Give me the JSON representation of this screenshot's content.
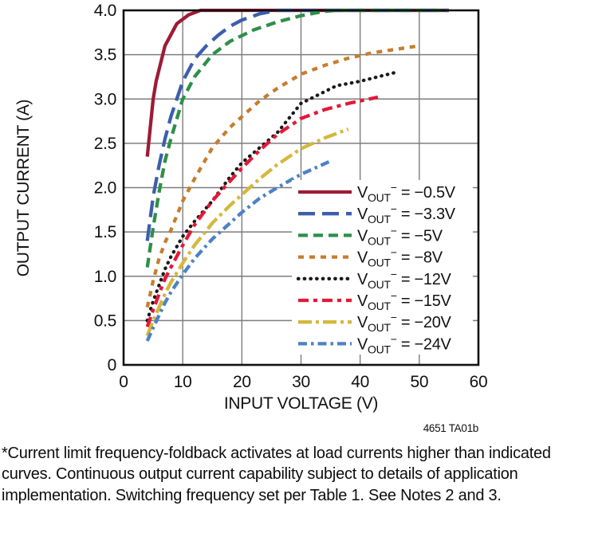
{
  "figure": {
    "code": "4651 TA01b",
    "note_lines": [
      "*Current limit frequency-foldback activates at load currents higher than indicated",
      "curves. Continuous output current capability subject to details of application",
      "implementation. Switching frequency set per Table 1. See Notes 2 and 3."
    ]
  },
  "chart_data": {
    "type": "line",
    "xlabel": "INPUT VOLTAGE (V)",
    "ylabel": "OUTPUT CURRENT (A)",
    "xlim": [
      0,
      60
    ],
    "ylim": [
      0,
      4
    ],
    "xticks": {
      "values": [
        0,
        10,
        20,
        30,
        40,
        50,
        60
      ],
      "labels": [
        "0",
        "10",
        "20",
        "30",
        "40",
        "50",
        "60"
      ]
    },
    "yticks": {
      "values": [
        0,
        0.5,
        1,
        1.5,
        2,
        2.5,
        3,
        3.5,
        4
      ],
      "labels": [
        "0",
        "0.5",
        "1.0",
        "1.5",
        "2.0",
        "2.5",
        "3.0",
        "3.5",
        "4.0"
      ]
    },
    "grid": true,
    "grid_color": "#7d7d7d",
    "frame_color": "#111111",
    "legend_position": "inside-right",
    "legend_template": {
      "var": "V",
      "sub": "OUT",
      "sup": "−",
      "eq": " = "
    },
    "series": [
      {
        "name": "VOUT⁻ = −0.5V",
        "value_label": "−0.5V",
        "color": "#9E1B35",
        "dash": [],
        "linecap": "butt",
        "points": [
          [
            4,
            2.35
          ],
          [
            5,
            3.0
          ],
          [
            5.5,
            3.2
          ],
          [
            7,
            3.6
          ],
          [
            9,
            3.85
          ],
          [
            11,
            3.95
          ],
          [
            13,
            4.0
          ],
          [
            55,
            4.0
          ]
        ]
      },
      {
        "name": "VOUT⁻ = −3.3V",
        "value_label": "−3.3V",
        "color": "#3D5EAB",
        "dash": [
          21,
          9
        ],
        "linecap": "butt",
        "points": [
          [
            4,
            1.4
          ],
          [
            5,
            1.9
          ],
          [
            6,
            2.25
          ],
          [
            7,
            2.55
          ],
          [
            8,
            2.8
          ],
          [
            10,
            3.2
          ],
          [
            12,
            3.45
          ],
          [
            14,
            3.6
          ],
          [
            16,
            3.72
          ],
          [
            18,
            3.82
          ],
          [
            20,
            3.89
          ],
          [
            23,
            3.96
          ],
          [
            26,
            4.0
          ],
          [
            55,
            4.0
          ]
        ]
      },
      {
        "name": "VOUT⁻ = −5V",
        "value_label": "−5V",
        "color": "#2E8F48",
        "dash": [
          12,
          7
        ],
        "linecap": "butt",
        "points": [
          [
            4,
            1.1
          ],
          [
            5,
            1.55
          ],
          [
            6,
            1.95
          ],
          [
            7,
            2.3
          ],
          [
            8,
            2.55
          ],
          [
            10,
            3.0
          ],
          [
            12,
            3.25
          ],
          [
            15,
            3.5
          ],
          [
            18,
            3.65
          ],
          [
            22,
            3.78
          ],
          [
            26,
            3.87
          ],
          [
            30,
            3.94
          ],
          [
            34,
            3.99
          ],
          [
            36,
            4.0
          ],
          [
            55,
            4.0
          ]
        ]
      },
      {
        "name": "VOUT⁻ = −8V",
        "value_label": "−8V",
        "color": "#C67D2F",
        "dash": [
          7,
          7
        ],
        "linecap": "butt",
        "points": [
          [
            4,
            0.65
          ],
          [
            5,
            0.95
          ],
          [
            6,
            1.2
          ],
          [
            7,
            1.38
          ],
          [
            8,
            1.52
          ],
          [
            10,
            1.85
          ],
          [
            12,
            2.1
          ],
          [
            15,
            2.45
          ],
          [
            18,
            2.68
          ],
          [
            20,
            2.8
          ],
          [
            23,
            2.98
          ],
          [
            26,
            3.12
          ],
          [
            30,
            3.28
          ],
          [
            34,
            3.38
          ],
          [
            38,
            3.46
          ],
          [
            42,
            3.52
          ],
          [
            46,
            3.56
          ],
          [
            50,
            3.6
          ]
        ]
      },
      {
        "name": "VOUT⁻ = −12V",
        "value_label": "−12V",
        "color": "#1A1A1A",
        "dash": [
          0.5,
          7.2
        ],
        "linecap": "round",
        "points": [
          [
            4,
            0.5
          ],
          [
            5,
            0.72
          ],
          [
            6,
            0.9
          ],
          [
            7,
            1.08
          ],
          [
            8,
            1.22
          ],
          [
            10,
            1.45
          ],
          [
            12,
            1.62
          ],
          [
            15,
            1.85
          ],
          [
            18,
            2.12
          ],
          [
            20,
            2.28
          ],
          [
            23,
            2.45
          ],
          [
            26,
            2.62
          ],
          [
            30,
            2.95
          ],
          [
            33,
            3.05
          ],
          [
            36,
            3.15
          ],
          [
            40,
            3.2
          ],
          [
            43,
            3.25
          ],
          [
            46,
            3.3
          ]
        ]
      },
      {
        "name": "VOUT⁻ = −15V",
        "value_label": "−15V",
        "color": "#E41937",
        "dash": [
          13,
          6,
          5,
          6
        ],
        "linecap": "butt",
        "points": [
          [
            4,
            0.43
          ],
          [
            5,
            0.62
          ],
          [
            6,
            0.8
          ],
          [
            7,
            0.97
          ],
          [
            8,
            1.1
          ],
          [
            10,
            1.35
          ],
          [
            12,
            1.58
          ],
          [
            15,
            1.85
          ],
          [
            17,
            2.0
          ],
          [
            20,
            2.22
          ],
          [
            23,
            2.42
          ],
          [
            26,
            2.6
          ],
          [
            30,
            2.78
          ],
          [
            34,
            2.88
          ],
          [
            38,
            2.95
          ],
          [
            43,
            3.02
          ]
        ]
      },
      {
        "name": "VOUT⁻ = −20V",
        "value_label": "−20V",
        "color": "#D4B83C",
        "dash": [
          17,
          5,
          4,
          5
        ],
        "linecap": "butt",
        "points": [
          [
            4,
            0.33
          ],
          [
            5,
            0.5
          ],
          [
            6,
            0.65
          ],
          [
            7,
            0.8
          ],
          [
            8,
            0.93
          ],
          [
            10,
            1.15
          ],
          [
            12,
            1.35
          ],
          [
            15,
            1.6
          ],
          [
            18,
            1.8
          ],
          [
            20,
            1.92
          ],
          [
            23,
            2.1
          ],
          [
            26,
            2.26
          ],
          [
            30,
            2.44
          ],
          [
            34,
            2.56
          ],
          [
            38,
            2.66
          ]
        ]
      },
      {
        "name": "VOUT⁻ = −24V",
        "value_label": "−24V",
        "color": "#4D82C4",
        "dash": [
          11,
          5,
          3.5,
          5
        ],
        "linecap": "butt",
        "points": [
          [
            4,
            0.27
          ],
          [
            5,
            0.42
          ],
          [
            6,
            0.56
          ],
          [
            7,
            0.7
          ],
          [
            8,
            0.82
          ],
          [
            10,
            1.02
          ],
          [
            12,
            1.2
          ],
          [
            15,
            1.42
          ],
          [
            18,
            1.6
          ],
          [
            20,
            1.72
          ],
          [
            23,
            1.88
          ],
          [
            26,
            2.0
          ],
          [
            30,
            2.15
          ],
          [
            33,
            2.24
          ],
          [
            35,
            2.3
          ]
        ]
      }
    ]
  }
}
